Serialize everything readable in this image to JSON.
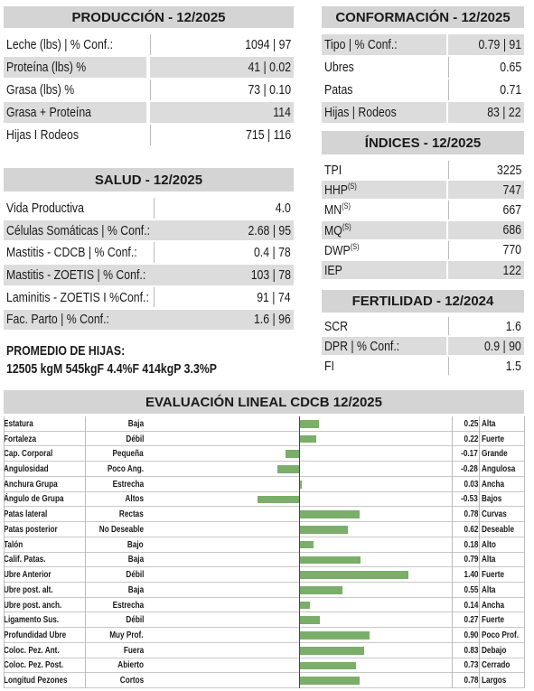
{
  "produccion": {
    "title": "PRODUCCIÓN - 12/2025",
    "rows": [
      {
        "label": "Leche (lbs) | % Conf.:",
        "value": "1094 | 97"
      },
      {
        "label": "Proteína (lbs) %",
        "value": "41 | 0.02"
      },
      {
        "label": "Grasa (lbs) %",
        "value": "73 | 0.10"
      },
      {
        "label": "Grasa + Proteína",
        "value": "114"
      },
      {
        "label": "Hijas I Rodeos",
        "value": "715 | 116"
      }
    ]
  },
  "salud": {
    "title": "SALUD - 12/2025",
    "rows": [
      {
        "label": "Vida Productiva",
        "value": "4.0"
      },
      {
        "label": "Células Somáticas | % Conf.:",
        "value": "2.68 | 95"
      },
      {
        "label": "Mastitis - CDCB | % Conf.:",
        "value": "0.4 | 78"
      },
      {
        "label": "Mastitis - ZOETIS | % Conf.:",
        "value": "103 | 78"
      },
      {
        "label": "Laminitis - ZOETIS I %Conf.:",
        "value": "91 | 74"
      },
      {
        "label": "Fac. Parto | % Conf.:",
        "value": "1.6 | 96"
      }
    ]
  },
  "promedio": {
    "title": "PROMEDIO DE HIJAS:",
    "text": "12505 kgM 545kgF 4.4%F 414kgP 3.3%P"
  },
  "conformacion": {
    "title": "CONFORMACIÓN - 12/2025",
    "rows": [
      {
        "label": "Tipo | % Conf.:",
        "value": "0.79 | 91"
      },
      {
        "label": "Ubres",
        "value": "0.65"
      },
      {
        "label": "Patas",
        "value": "0.71"
      },
      {
        "label": "Hijas | Rodeos",
        "value": "83 | 22"
      }
    ]
  },
  "indices": {
    "title": "ÍNDICES - 12/2025",
    "rows": [
      {
        "label": "TPI",
        "value": "3225"
      },
      {
        "label": "HHP",
        "sup": "(S)",
        "value": "747"
      },
      {
        "label": "MN",
        "sup": "(S)",
        "value": "667"
      },
      {
        "label": "MQ",
        "sup": "(S)",
        "value": "686"
      },
      {
        "label": "DWP",
        "sup": "(S)",
        "value": "770"
      },
      {
        "label": "IEP",
        "value": "122"
      }
    ]
  },
  "fertilidad": {
    "title": "FERTILIDAD - 12/2024",
    "rows": [
      {
        "label": "SCR",
        "value": "1.6"
      },
      {
        "label": "DPR | % Conf.:",
        "value": "0.9 | 90"
      },
      {
        "label": "FI",
        "value": "1.5"
      }
    ]
  },
  "lineal": {
    "title": "EVALUACIÓN LINEAL CDCB 12/2025",
    "rows": [
      {
        "trait": "Estatura",
        "low": "Baja",
        "value": 0.25,
        "high": "Alta"
      },
      {
        "trait": "Fortaleza",
        "low": "Débil",
        "value": 0.22,
        "high": "Fuerte"
      },
      {
        "trait": "Cap. Corporal",
        "low": "Pequeña",
        "value": -0.17,
        "high": "Grande"
      },
      {
        "trait": "Angulosidad",
        "low": "Poco Ang.",
        "value": -0.28,
        "high": "Angulosa"
      },
      {
        "trait": "Anchura Grupa",
        "low": "Estrecha",
        "value": 0.03,
        "high": "Ancha"
      },
      {
        "trait": "Ángulo de Grupa",
        "low": "Altos",
        "value": -0.53,
        "high": "Bajos"
      },
      {
        "trait": "Patas lateral",
        "low": "Rectas",
        "value": 0.78,
        "high": "Curvas"
      },
      {
        "trait": "Patas posterior",
        "low": "No Deseable",
        "value": 0.62,
        "high": "Deseable"
      },
      {
        "trait": "Talón",
        "low": "Bajo",
        "value": 0.18,
        "high": "Alto"
      },
      {
        "trait": "Calif. Patas.",
        "low": "Baja",
        "value": 0.79,
        "high": "Alta"
      },
      {
        "trait": "Ubre Anterior",
        "low": "Débil",
        "value": 1.4,
        "value_label": "1.40",
        "high": "Fuerte"
      },
      {
        "trait": "Ubre post. alt.",
        "low": "Baja",
        "value": 0.55,
        "high": "Alta"
      },
      {
        "trait": "Ubre post. anch.",
        "low": "Estrecha",
        "value": 0.14,
        "high": "Ancha"
      },
      {
        "trait": "Ligamento Sus.",
        "low": "Débil",
        "value": 0.27,
        "high": "Fuerte"
      },
      {
        "trait": "Profundidad Ubre",
        "low": "Muy Prof.",
        "value": 0.9,
        "value_label": "0.90",
        "high": "Poco Prof."
      },
      {
        "trait": "Coloc. Pez. Ant.",
        "low": "Fuera",
        "value": 0.83,
        "high": "Debajo"
      },
      {
        "trait": "Coloc. Pez. Post.",
        "low": "Abierto",
        "value": 0.73,
        "high": "Cerrado"
      },
      {
        "trait": "Longitud Pezones",
        "low": "Cortos",
        "value": 0.78,
        "high": "Largos"
      }
    ]
  }
}
